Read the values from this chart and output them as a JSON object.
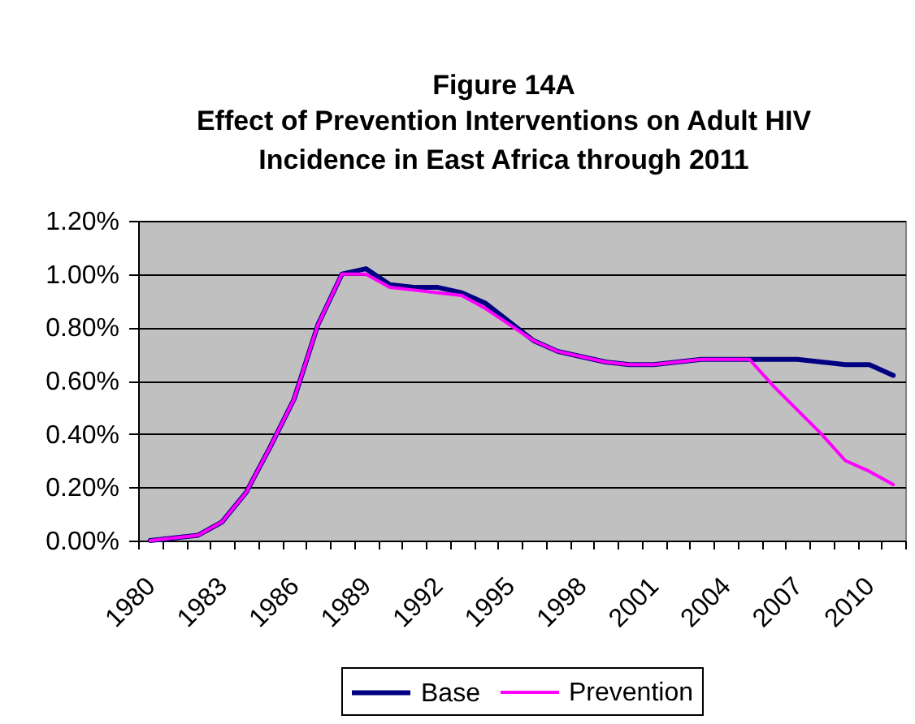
{
  "chart_data": {
    "type": "line",
    "title": "Figure 14A",
    "subtitle": "Effect of Prevention Interventions on Adult HIV\nIncidence in East Africa through 2011",
    "categories": [
      "1980",
      null,
      null,
      "1983",
      null,
      null,
      "1986",
      null,
      null,
      "1989",
      null,
      null,
      "1992",
      null,
      null,
      "1995",
      null,
      null,
      "1998",
      null,
      null,
      "2001",
      null,
      null,
      "2004",
      null,
      null,
      "2007",
      null,
      null,
      "2010",
      null
    ],
    "series": [
      {
        "name": "Base",
        "color": "#000080",
        "values": [
          0,
          0.01,
          0.02,
          0.07,
          0.18,
          0.35,
          0.53,
          0.81,
          1.0,
          1.02,
          0.96,
          0.95,
          0.95,
          0.93,
          0.89,
          0.82,
          0.75,
          0.71,
          0.69,
          0.67,
          0.66,
          0.66,
          0.67,
          0.68,
          0.68,
          0.68,
          0.68,
          0.68,
          0.67,
          0.66,
          0.66,
          0.62
        ]
      },
      {
        "name": "Prevention",
        "color": "#ff00ff",
        "values": [
          0,
          0.01,
          0.02,
          0.07,
          0.18,
          0.35,
          0.53,
          0.81,
          1.0,
          1.0,
          0.95,
          0.94,
          0.93,
          0.92,
          0.87,
          0.81,
          0.75,
          0.71,
          0.69,
          0.67,
          0.66,
          0.66,
          0.67,
          0.68,
          0.68,
          0.68,
          0.58,
          0.49,
          0.4,
          0.3,
          0.26,
          0.21
        ]
      }
    ],
    "ylim": [
      0,
      1.2
    ],
    "yticks": [
      {
        "value": 0,
        "label": "0.00%"
      },
      {
        "value": 0.2,
        "label": "0.20%"
      },
      {
        "value": 0.4,
        "label": "0.40%"
      },
      {
        "value": 0.6,
        "label": "0.60%"
      },
      {
        "value": 0.8,
        "label": "0.80%"
      },
      {
        "value": 1.0,
        "label": "1.00%"
      },
      {
        "value": 1.2,
        "label": "1.20%"
      }
    ],
    "grid": "y",
    "legend": "bottom"
  }
}
